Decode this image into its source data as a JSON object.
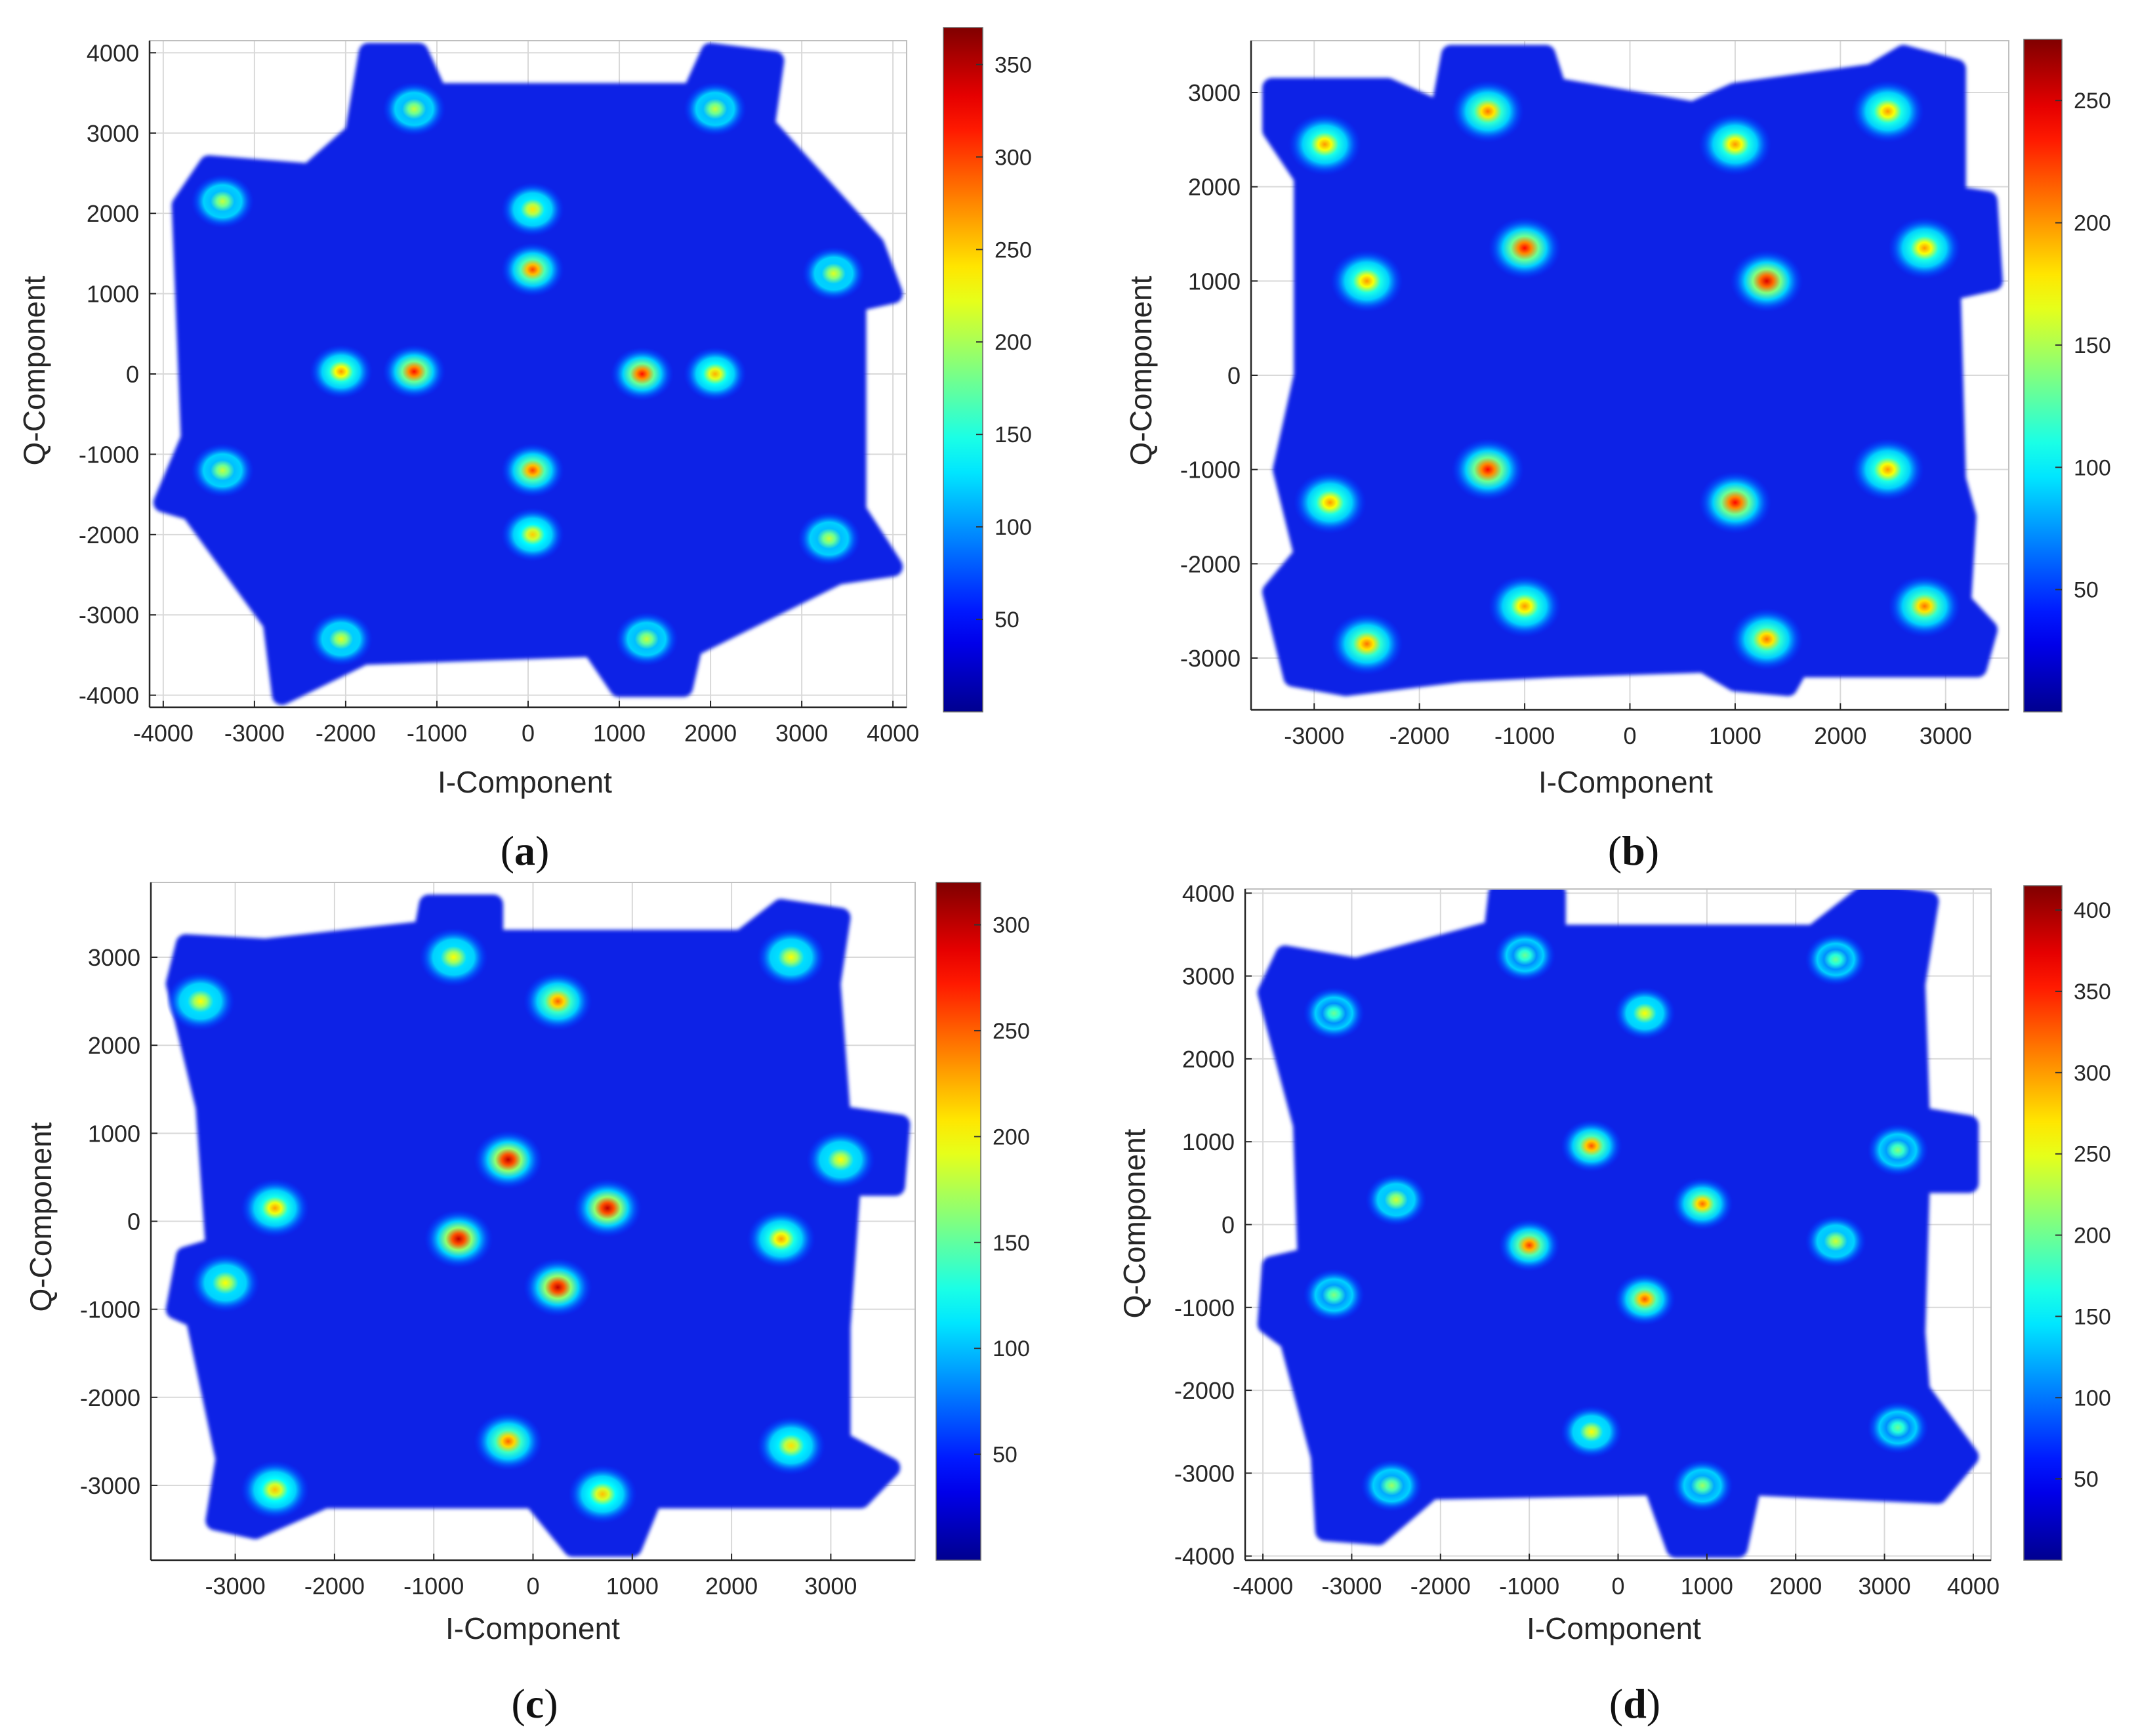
{
  "figure": {
    "panels": [
      {
        "id": "a",
        "caption": "a",
        "caption_open": "(",
        "caption_close": ")"
      },
      {
        "id": "b",
        "caption": "b",
        "caption_open": "(",
        "caption_close": ")"
      },
      {
        "id": "c",
        "caption": "c",
        "caption_open": "(",
        "caption_close": ")"
      },
      {
        "id": "d",
        "caption": "d",
        "caption_open": "(",
        "caption_close": ")"
      }
    ]
  },
  "colors": {
    "background_plot": "#ffffff",
    "cloud_base": "#0a23e6",
    "grid": "#d9d9d9",
    "axis": "#262626",
    "colormap": [
      "#00008f",
      "#0000ff",
      "#0080ff",
      "#00ffff",
      "#80ff80",
      "#ffff00",
      "#ff8000",
      "#ff0000",
      "#800000"
    ]
  },
  "chart_data": [
    {
      "type": "heatmap",
      "panel": "a",
      "xlabel": "I-Component",
      "ylabel": "Q-Component",
      "xlim": [
        -4150,
        4150
      ],
      "ylim": [
        -4150,
        4150
      ],
      "xticks": [
        -4000,
        -3000,
        -2000,
        -1000,
        0,
        1000,
        2000,
        3000,
        4000
      ],
      "yticks": [
        -4000,
        -3000,
        -2000,
        -1000,
        0,
        1000,
        2000,
        3000,
        4000
      ],
      "grid": true,
      "colorbar": {
        "min": 0,
        "max": 370,
        "ticks": [
          50,
          100,
          150,
          200,
          250,
          300,
          350
        ]
      },
      "cloud_outline": [
        [
          -1750,
          4000
        ],
        [
          -1200,
          4000
        ],
        [
          -1000,
          3500
        ],
        [
          1800,
          3500
        ],
        [
          2000,
          4000
        ],
        [
          2700,
          3900
        ],
        [
          2600,
          3100
        ],
        [
          3800,
          1600
        ],
        [
          4000,
          1000
        ],
        [
          3600,
          900
        ],
        [
          3600,
          -1700
        ],
        [
          4000,
          -2400
        ],
        [
          3400,
          -2500
        ],
        [
          1800,
          -3400
        ],
        [
          1700,
          -3900
        ],
        [
          1000,
          -3900
        ],
        [
          700,
          -3400
        ],
        [
          -1800,
          -3500
        ],
        [
          -2700,
          -4000
        ],
        [
          -2800,
          -3100
        ],
        [
          -3700,
          -1700
        ],
        [
          -4000,
          -1600
        ],
        [
          -3700,
          -800
        ],
        [
          -3800,
          2100
        ],
        [
          -3500,
          2600
        ],
        [
          -2400,
          2500
        ],
        [
          -1900,
          3000
        ]
      ],
      "clusters": [
        {
          "x": -1250,
          "y": 3300,
          "intensity": 210
        },
        {
          "x": 2050,
          "y": 3300,
          "intensity": 210
        },
        {
          "x": -3350,
          "y": 2150,
          "intensity": 210
        },
        {
          "x": 50,
          "y": 2050,
          "intensity": 240
        },
        {
          "x": 50,
          "y": 1300,
          "intensity": 300
        },
        {
          "x": 3350,
          "y": 1250,
          "intensity": 220
        },
        {
          "x": -2050,
          "y": 30,
          "intensity": 270
        },
        {
          "x": -1250,
          "y": 30,
          "intensity": 320
        },
        {
          "x": 1250,
          "y": 0,
          "intensity": 320
        },
        {
          "x": 2050,
          "y": 0,
          "intensity": 260
        },
        {
          "x": -3350,
          "y": -1200,
          "intensity": 210
        },
        {
          "x": 50,
          "y": -1200,
          "intensity": 300
        },
        {
          "x": 50,
          "y": -2000,
          "intensity": 250
        },
        {
          "x": 3300,
          "y": -2050,
          "intensity": 210
        },
        {
          "x": -2050,
          "y": -3300,
          "intensity": 220
        },
        {
          "x": 1300,
          "y": -3300,
          "intensity": 210
        }
      ]
    },
    {
      "type": "heatmap",
      "panel": "b",
      "xlabel": "I-Component",
      "ylabel": "Q-Component",
      "xlim": [
        -3600,
        3600
      ],
      "ylim": [
        -3550,
        3550
      ],
      "xticks": [
        -3000,
        -2000,
        -1000,
        0,
        1000,
        2000,
        3000
      ],
      "yticks": [
        -3000,
        -2000,
        -1000,
        0,
        1000,
        2000,
        3000
      ],
      "grid": true,
      "colorbar": {
        "min": 0,
        "max": 275,
        "ticks": [
          50,
          100,
          150,
          200,
          250
        ]
      },
      "cloud_outline": [
        [
          -3400,
          3050
        ],
        [
          -2300,
          3050
        ],
        [
          -1800,
          2800
        ],
        [
          -1700,
          3400
        ],
        [
          -800,
          3400
        ],
        [
          -700,
          3050
        ],
        [
          600,
          2800
        ],
        [
          1000,
          3000
        ],
        [
          2300,
          3200
        ],
        [
          2600,
          3400
        ],
        [
          3100,
          3250
        ],
        [
          3100,
          1900
        ],
        [
          3400,
          1850
        ],
        [
          3450,
          1000
        ],
        [
          3050,
          900
        ],
        [
          3100,
          -1100
        ],
        [
          3200,
          -1500
        ],
        [
          3150,
          -2400
        ],
        [
          3400,
          -2700
        ],
        [
          3300,
          -3100
        ],
        [
          1600,
          -3100
        ],
        [
          1500,
          -3300
        ],
        [
          1000,
          -3250
        ],
        [
          700,
          -3050
        ],
        [
          -700,
          -3100
        ],
        [
          -1600,
          -3150
        ],
        [
          -2700,
          -3300
        ],
        [
          -3200,
          -3200
        ],
        [
          -3400,
          -2300
        ],
        [
          -3100,
          -1900
        ],
        [
          -3300,
          -1000
        ],
        [
          -3100,
          0
        ],
        [
          -3100,
          2100
        ],
        [
          -3400,
          2600
        ]
      ],
      "clusters": [
        {
          "x": -2900,
          "y": 2450,
          "intensity": 200
        },
        {
          "x": -1350,
          "y": 2800,
          "intensity": 210
        },
        {
          "x": 1000,
          "y": 2450,
          "intensity": 200
        },
        {
          "x": 2450,
          "y": 2800,
          "intensity": 200
        },
        {
          "x": -2500,
          "y": 1000,
          "intensity": 200
        },
        {
          "x": -1000,
          "y": 1350,
          "intensity": 240
        },
        {
          "x": 1300,
          "y": 1000,
          "intensity": 250
        },
        {
          "x": 2800,
          "y": 1350,
          "intensity": 200
        },
        {
          "x": -2850,
          "y": -1350,
          "intensity": 200
        },
        {
          "x": -1350,
          "y": -1000,
          "intensity": 240
        },
        {
          "x": 1000,
          "y": -1350,
          "intensity": 240
        },
        {
          "x": 2450,
          "y": -1000,
          "intensity": 200
        },
        {
          "x": -2500,
          "y": -2850,
          "intensity": 210
        },
        {
          "x": -1000,
          "y": -2450,
          "intensity": 200
        },
        {
          "x": 1300,
          "y": -2800,
          "intensity": 210
        },
        {
          "x": 2800,
          "y": -2450,
          "intensity": 210
        }
      ]
    },
    {
      "type": "heatmap",
      "panel": "c",
      "xlabel": "I-Component",
      "ylabel": "Q-Component",
      "xlim": [
        -3850,
        3850
      ],
      "ylim": [
        -3850,
        3850
      ],
      "xticks": [
        -3000,
        -2000,
        -1000,
        0,
        1000,
        2000,
        3000
      ],
      "yticks": [
        -3000,
        -2000,
        -1000,
        0,
        1000,
        2000,
        3000
      ],
      "grid": true,
      "colorbar": {
        "min": 0,
        "max": 320,
        "ticks": [
          50,
          100,
          150,
          200,
          250,
          300
        ]
      },
      "cloud_outline": [
        [
          -3500,
          3150
        ],
        [
          -2700,
          3100
        ],
        [
          -1100,
          3300
        ],
        [
          -1050,
          3600
        ],
        [
          -400,
          3600
        ],
        [
          -400,
          3200
        ],
        [
          2100,
          3200
        ],
        [
          2500,
          3550
        ],
        [
          3100,
          3450
        ],
        [
          3000,
          2700
        ],
        [
          3100,
          1200
        ],
        [
          3700,
          1100
        ],
        [
          3650,
          400
        ],
        [
          3200,
          400
        ],
        [
          3100,
          -1200
        ],
        [
          3100,
          -2500
        ],
        [
          3600,
          -2800
        ],
        [
          3300,
          -3150
        ],
        [
          1200,
          -3150
        ],
        [
          1000,
          -3700
        ],
        [
          400,
          -3700
        ],
        [
          0,
          -3150
        ],
        [
          -2100,
          -3150
        ],
        [
          -2800,
          -3500
        ],
        [
          -3200,
          -3400
        ],
        [
          -3100,
          -2700
        ],
        [
          -3400,
          -1100
        ],
        [
          -3600,
          -1000
        ],
        [
          -3500,
          -400
        ],
        [
          -3200,
          -300
        ],
        [
          -3300,
          1300
        ],
        [
          -3600,
          2700
        ]
      ],
      "clusters": [
        {
          "x": -800,
          "y": 3000,
          "intensity": 200
        },
        {
          "x": 2600,
          "y": 3000,
          "intensity": 200
        },
        {
          "x": -3350,
          "y": 2500,
          "intensity": 200
        },
        {
          "x": 250,
          "y": 2500,
          "intensity": 250
        },
        {
          "x": -250,
          "y": 700,
          "intensity": 300
        },
        {
          "x": 3100,
          "y": 700,
          "intensity": 200
        },
        {
          "x": -2600,
          "y": 150,
          "intensity": 230
        },
        {
          "x": 750,
          "y": 150,
          "intensity": 300
        },
        {
          "x": -750,
          "y": -200,
          "intensity": 300
        },
        {
          "x": 2500,
          "y": -200,
          "intensity": 230
        },
        {
          "x": -3100,
          "y": -700,
          "intensity": 200
        },
        {
          "x": 250,
          "y": -750,
          "intensity": 300
        },
        {
          "x": -250,
          "y": -2500,
          "intensity": 250
        },
        {
          "x": 2600,
          "y": -2550,
          "intensity": 210
        },
        {
          "x": -2600,
          "y": -3050,
          "intensity": 220
        },
        {
          "x": 700,
          "y": -3100,
          "intensity": 220
        }
      ]
    },
    {
      "type": "heatmap",
      "panel": "d",
      "xlabel": "I-Component",
      "ylabel": "Q-Component",
      "xlim": [
        -4200,
        4200
      ],
      "ylim": [
        -4050,
        4050
      ],
      "xticks": [
        -4000,
        -3000,
        -2000,
        -1000,
        0,
        1000,
        2000,
        3000,
        4000
      ],
      "yticks": [
        -4000,
        -3000,
        -2000,
        -1000,
        0,
        1000,
        2000,
        3000,
        4000
      ],
      "grid": true,
      "colorbar": {
        "min": 0,
        "max": 415,
        "ticks": [
          50,
          100,
          150,
          200,
          250,
          300,
          350,
          400
        ]
      },
      "cloud_outline": [
        [
          -3750,
          3250
        ],
        [
          -2950,
          3100
        ],
        [
          -1400,
          3550
        ],
        [
          -1350,
          4000
        ],
        [
          -700,
          4000
        ],
        [
          -700,
          3500
        ],
        [
          2200,
          3500
        ],
        [
          2800,
          4000
        ],
        [
          3500,
          3900
        ],
        [
          3350,
          2900
        ],
        [
          3400,
          1300
        ],
        [
          3950,
          1200
        ],
        [
          3950,
          500
        ],
        [
          3400,
          500
        ],
        [
          3350,
          -1300
        ],
        [
          3400,
          -2000
        ],
        [
          3950,
          -2800
        ],
        [
          3600,
          -3250
        ],
        [
          1500,
          -3150
        ],
        [
          1350,
          -3900
        ],
        [
          650,
          -3900
        ],
        [
          400,
          -3150
        ],
        [
          -2100,
          -3200
        ],
        [
          -2700,
          -3750
        ],
        [
          -3300,
          -3700
        ],
        [
          -3350,
          -2800
        ],
        [
          -3700,
          -1400
        ],
        [
          -3950,
          -1200
        ],
        [
          -3900,
          -500
        ],
        [
          -3500,
          -400
        ],
        [
          -3550,
          1200
        ],
        [
          -3950,
          2800
        ]
      ],
      "clusters": [
        {
          "x": -1050,
          "y": 3250,
          "intensity": 200
        },
        {
          "x": 2450,
          "y": 3200,
          "intensity": 200
        },
        {
          "x": -3200,
          "y": 2550,
          "intensity": 200
        },
        {
          "x": 300,
          "y": 2550,
          "intensity": 260
        },
        {
          "x": -300,
          "y": 950,
          "intensity": 330
        },
        {
          "x": 3150,
          "y": 900,
          "intensity": 210
        },
        {
          "x": -2500,
          "y": 300,
          "intensity": 240
        },
        {
          "x": 950,
          "y": 250,
          "intensity": 320
        },
        {
          "x": -1000,
          "y": -250,
          "intensity": 340
        },
        {
          "x": 2450,
          "y": -200,
          "intensity": 240
        },
        {
          "x": -3200,
          "y": -850,
          "intensity": 210
        },
        {
          "x": 300,
          "y": -900,
          "intensity": 330
        },
        {
          "x": -300,
          "y": -2500,
          "intensity": 260
        },
        {
          "x": 3150,
          "y": -2450,
          "intensity": 200
        },
        {
          "x": -2550,
          "y": -3150,
          "intensity": 220
        },
        {
          "x": 950,
          "y": -3150,
          "intensity": 220
        }
      ]
    }
  ]
}
